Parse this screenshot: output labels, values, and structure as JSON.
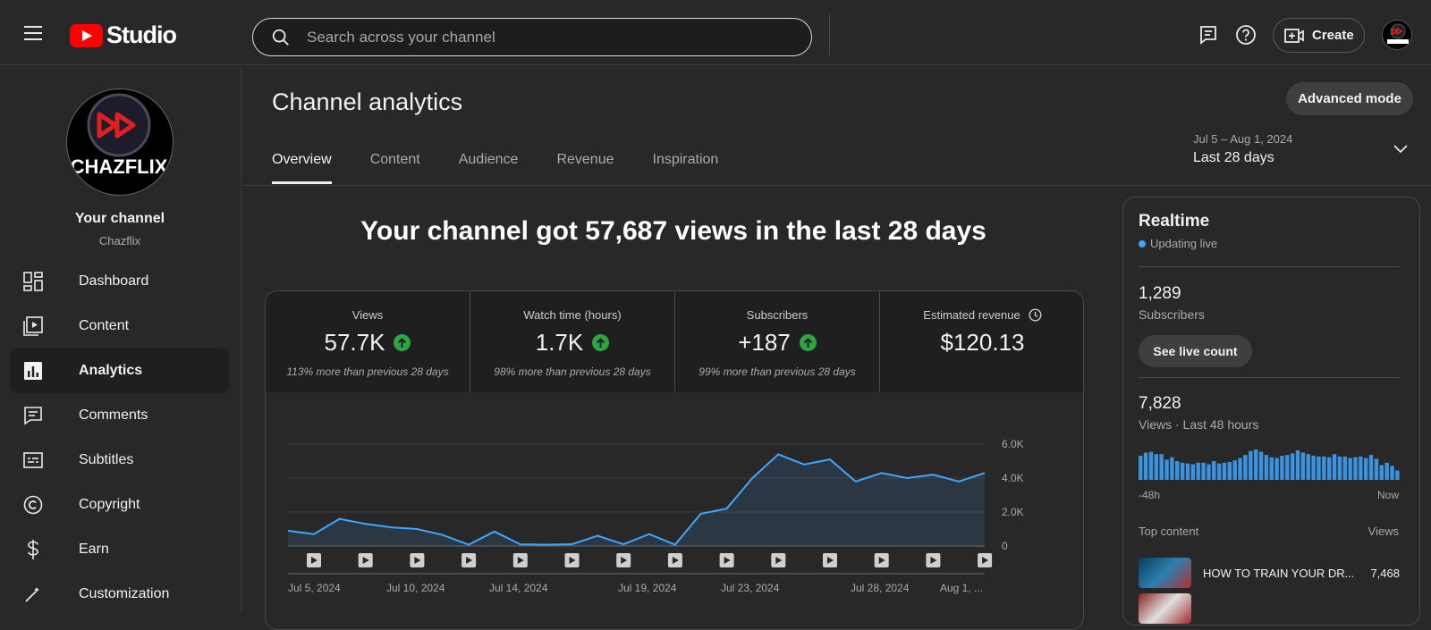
{
  "app": {
    "title": "Studio"
  },
  "search": {
    "placeholder": "Search across your channel"
  },
  "header": {
    "create_label": "Create"
  },
  "sidebar": {
    "channel_title": "Your channel",
    "channel_handle": "Chazflix",
    "avatar_text": "CHAZFLIX",
    "items": [
      {
        "label": "Dashboard",
        "icon": "dashboard-icon"
      },
      {
        "label": "Content",
        "icon": "content-icon"
      },
      {
        "label": "Analytics",
        "icon": "analytics-icon",
        "active": true
      },
      {
        "label": "Comments",
        "icon": "comments-icon"
      },
      {
        "label": "Subtitles",
        "icon": "subtitles-icon"
      },
      {
        "label": "Copyright",
        "icon": "copyright-icon"
      },
      {
        "label": "Earn",
        "icon": "earn-icon"
      },
      {
        "label": "Customization",
        "icon": "customization-icon"
      }
    ]
  },
  "main": {
    "title": "Channel analytics",
    "advanced_label": "Advanced mode",
    "tabs": [
      {
        "label": "Overview",
        "active": true
      },
      {
        "label": "Content"
      },
      {
        "label": "Audience"
      },
      {
        "label": "Revenue"
      },
      {
        "label": "Inspiration"
      }
    ],
    "date_range": {
      "range": "Jul 5 – Aug 1, 2024",
      "label": "Last 28 days"
    },
    "headline": "Your channel got 57,687 views in the last 28 days",
    "kpis": [
      {
        "label": "Views",
        "value": "57.7K",
        "note": "113% more than previous 28 days",
        "trend": "up"
      },
      {
        "label": "Watch time (hours)",
        "value": "1.7K",
        "note": "98% more than previous 28 days",
        "trend": "up"
      },
      {
        "label": "Subscribers",
        "value": "+187",
        "note": "99% more than previous 28 days",
        "trend": "up"
      },
      {
        "label": "Estimated revenue",
        "value": "$120.13",
        "note": "",
        "trend": "none"
      }
    ]
  },
  "chart_data": {
    "type": "area",
    "series": [
      {
        "values": [
          900,
          700,
          1600,
          1300,
          1100,
          1000,
          650,
          80,
          850,
          100,
          80,
          100,
          600,
          100,
          700,
          80,
          1900,
          2200,
          4000,
          5400,
          4800,
          5100,
          3800,
          4300,
          4000,
          4200,
          3800,
          4300
        ]
      }
    ],
    "x_tick_labels": [
      "Jul 5, 2024",
      "Jul 10, 2024",
      "Jul 14, 2024",
      "Jul 19, 2024",
      "Jul 23, 2024",
      "Jul 28, 2024",
      "Aug 1, ..."
    ],
    "y_tick_labels": [
      "0",
      "2.0K",
      "4.0K",
      "6.0K"
    ],
    "ylim": [
      0,
      6000
    ],
    "video_markers": 14,
    "line_color": "#3ea6ff"
  },
  "realtime": {
    "title": "Realtime",
    "status": "Updating live",
    "subscribers": "1,289",
    "subscribers_label": "Subscribers",
    "live_count_label": "See live count",
    "views": "7,828",
    "views_label": "Views · Last 48 hours",
    "bar_values": [
      62,
      70,
      72,
      66,
      66,
      52,
      58,
      48,
      44,
      42,
      40,
      44,
      44,
      40,
      48,
      42,
      44,
      46,
      50,
      56,
      64,
      74,
      78,
      72,
      64,
      58,
      56,
      62,
      64,
      68,
      76,
      70,
      66,
      62,
      60,
      60,
      58,
      66,
      60,
      60,
      56,
      58,
      60,
      56,
      64,
      54,
      38,
      44,
      36,
      24
    ],
    "axis_start": "-48h",
    "axis_end": "Now",
    "top_content_label": "Top content",
    "views_col_label": "Views",
    "top_content": [
      {
        "title": "HOW TO TRAIN YOUR DR...",
        "views": "7,468"
      }
    ]
  }
}
